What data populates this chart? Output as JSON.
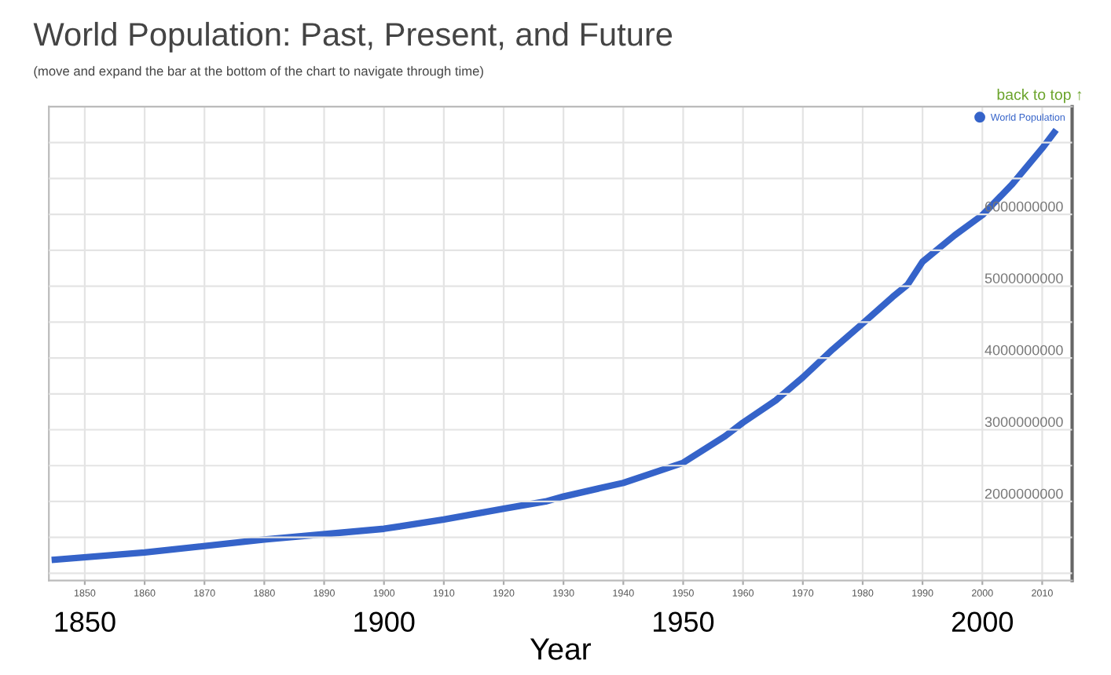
{
  "chart_data": {
    "type": "line",
    "title": "World Population: Past, Present, and Future",
    "subtitle": "(move and expand the bar at the bottom of the chart to navigate through time)",
    "annotations": [
      "back to top ↑"
    ],
    "x": [
      1845,
      1860,
      1880,
      1900,
      1910,
      1920,
      1927,
      1930,
      1940,
      1950,
      1957,
      1960,
      1965.5,
      1970,
      1975,
      1980,
      1985,
      1987.5,
      1990,
      1995.4,
      2000,
      2005,
      2010,
      2012
    ],
    "series": [
      {
        "name": "World Population",
        "color": "#3563c9",
        "values": [
          1190000000.0,
          1290000000.0,
          1470000000.0,
          1620000000.0,
          1750000000.0,
          1900000000.0,
          2000000000.0,
          2070000000.0,
          2260000000.0,
          2540000000.0,
          2910000000.0,
          3100000000.0,
          3410000000.0,
          3730000000.0,
          4120000000.0,
          4480000000.0,
          4850000000.0,
          5020000000.0,
          5340000000.0,
          5710000000.0,
          5990000000.0,
          6420000000.0,
          6920000000.0,
          7140000000.0
        ]
      }
    ],
    "xlim": [
      1844,
      2015
    ],
    "xticks": [
      1850,
      1860,
      1870,
      1880,
      1890,
      1900,
      1910,
      1920,
      1930,
      1940,
      1950,
      1960,
      1970,
      1980,
      1990,
      2000,
      2010
    ],
    "x2lim": [
      1844,
      2015
    ],
    "x2ticks": [
      1850,
      1900,
      1950,
      2000
    ],
    "x2label": "Year",
    "ylim": [
      900000000.0,
      7500000000.0
    ],
    "yticks": [
      {
        "value": 1000000000.0,
        "label": null
      },
      {
        "value": 1500000000.0,
        "label": null
      },
      {
        "value": 2000000000.0,
        "label": "2000000000"
      },
      {
        "value": 2500000000.0,
        "label": null
      },
      {
        "value": 3000000000.0,
        "label": "3000000000"
      },
      {
        "value": 3500000000.0,
        "label": null
      },
      {
        "value": 4000000000.0,
        "label": "4000000000"
      },
      {
        "value": 4500000000.0,
        "label": null
      },
      {
        "value": 5000000000.0,
        "label": "5000000000"
      },
      {
        "value": 5500000000.0,
        "label": null
      },
      {
        "value": 6000000000.0,
        "label": "6000000000"
      },
      {
        "value": 6500000000.0,
        "label": null
      },
      {
        "value": 7000000000.0,
        "label": null
      }
    ],
    "grid": true,
    "legend": "top right",
    "marker": "none",
    "line_style": "solid"
  }
}
